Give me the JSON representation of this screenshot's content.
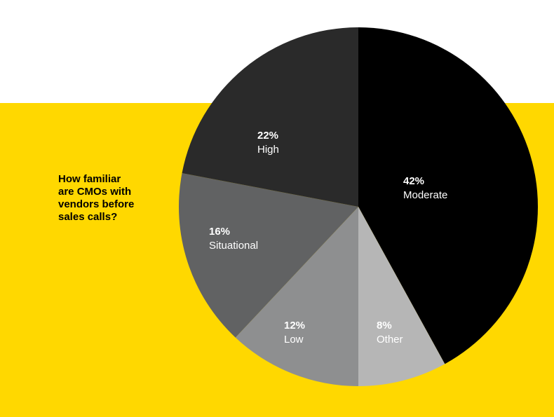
{
  "page": {
    "background": "#ffffff",
    "band_color": "#FFD800"
  },
  "question": {
    "lines": [
      "How familiar",
      "are CMOs with",
      "vendors before",
      "sales calls?"
    ]
  },
  "chart_data": {
    "type": "pie",
    "title": "How familiar are CMOs with vendors before sales calls?",
    "slices": [
      {
        "label": "Moderate",
        "value": 42,
        "value_label": "42%",
        "color": "#000000",
        "text_color": "#ffffff"
      },
      {
        "label": "Other",
        "value": 8,
        "value_label": "8%",
        "color": "#B6B6B6",
        "text_color": "#ffffff"
      },
      {
        "label": "Low",
        "value": 12,
        "value_label": "12%",
        "color": "#8E8F90",
        "text_color": "#ffffff"
      },
      {
        "label": "Situational",
        "value": 16,
        "value_label": "16%",
        "color": "#616263",
        "text_color": "#ffffff"
      },
      {
        "label": "High",
        "value": 22,
        "value_label": "22%",
        "color": "#2A2A2A",
        "text_color": "#ffffff"
      }
    ],
    "legend": "none",
    "start": "top",
    "direction": "clockwise"
  }
}
